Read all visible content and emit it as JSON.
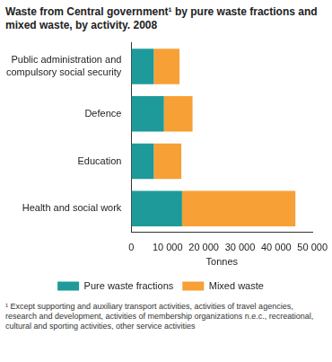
{
  "chart_data": {
    "type": "bar",
    "orientation": "horizontal",
    "stacked": true,
    "title": "Waste from Central government¹ by pure waste fractions and mixed waste, by activity. 2008",
    "categories": [
      "Public administration and compulsory social security",
      "Defence",
      "Education",
      "Health and social work"
    ],
    "series": [
      {
        "name": "Pure waste fractions",
        "color": "#1f9a9a",
        "values": [
          6200,
          9000,
          6200,
          14000
        ]
      },
      {
        "name": "Mixed waste",
        "color": "#f7a035",
        "values": [
          7100,
          7900,
          7600,
          31300
        ]
      }
    ],
    "x_label": "Tonnes",
    "xlim": [
      0,
      50000
    ],
    "xticks": [
      0,
      {
        "value": 10000,
        "label": "10 000"
      },
      {
        "value": 20000,
        "label": "20 000"
      },
      {
        "value": 30000,
        "label": "30 000"
      },
      {
        "value": 40000,
        "label": "40 000"
      },
      {
        "value": 50000,
        "label": "50 000"
      }
    ],
    "grid": false,
    "legend": "bottom",
    "footnote": "¹ Except supporting and auxiliary transport activities, activities of travel agencies, research and development, activities of membership organizations n.e.c., recreational, cultural and sporting activities, other service activities"
  }
}
